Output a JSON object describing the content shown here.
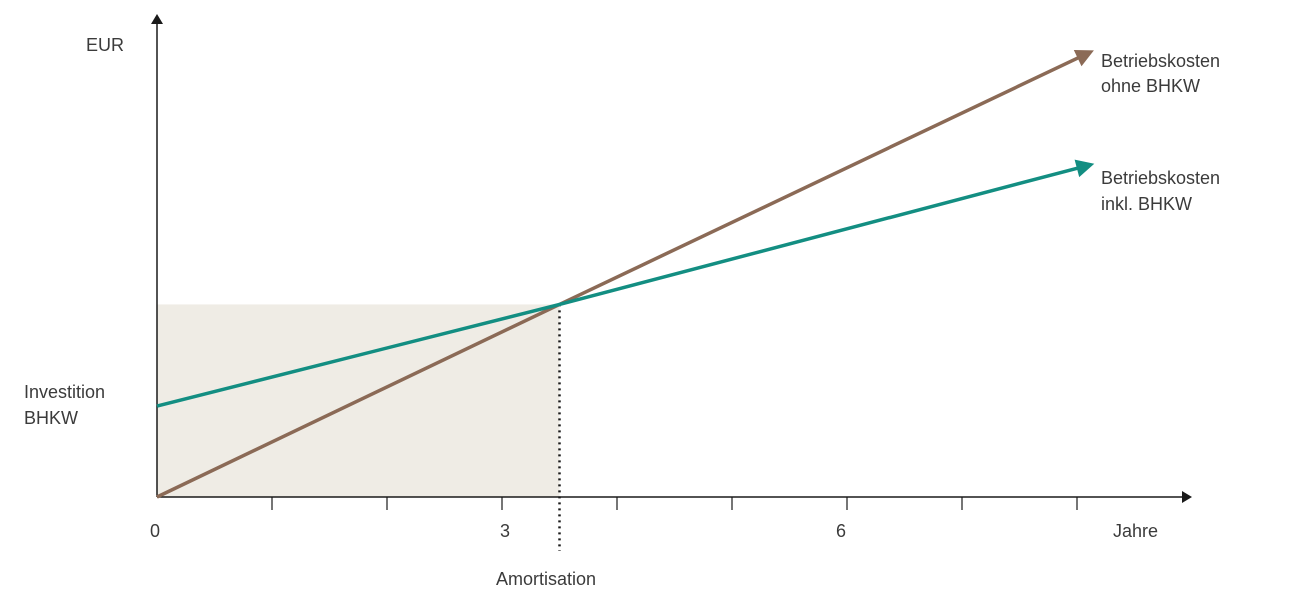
{
  "chart_data": {
    "type": "line",
    "title": "",
    "xlabel": "Jahre",
    "ylabel": "EUR",
    "x_ticks": [
      0,
      3,
      6
    ],
    "x_minor_ticks": [
      1,
      2,
      3,
      4,
      5,
      6,
      7,
      8
    ],
    "xlim": [
      0,
      9
    ],
    "ylim": [
      0,
      10
    ],
    "y_axis_annotation": "Investition BHKW",
    "payback": {
      "x": 3.5,
      "label": "Amortisation"
    },
    "series": [
      {
        "name": "Betriebskosten ohne BHKW",
        "color": "#8b6a56",
        "points": [
          [
            0,
            0
          ],
          [
            3.5,
            3.6
          ],
          [
            8.1,
            8.3
          ]
        ]
      },
      {
        "name": "Betriebskosten inkl. BHKW",
        "color": "#138e82",
        "points": [
          [
            0,
            1.7
          ],
          [
            3.5,
            3.6
          ],
          [
            8.1,
            6.2
          ]
        ]
      }
    ],
    "investment_area_color": "#efece5",
    "grid": false
  },
  "labels": {
    "y_axis": "EUR",
    "x_axis": "Jahre",
    "invest_line1": "Investition",
    "invest_line2": "BHKW",
    "amortisation": "Amortisation",
    "series1_line1": "Betriebskosten",
    "series1_line2": "ohne BHKW",
    "series2_line1": "Betriebskosten",
    "series2_line2": "inkl. BHKW",
    "tick_0": "0",
    "tick_3": "3",
    "tick_6": "6"
  }
}
